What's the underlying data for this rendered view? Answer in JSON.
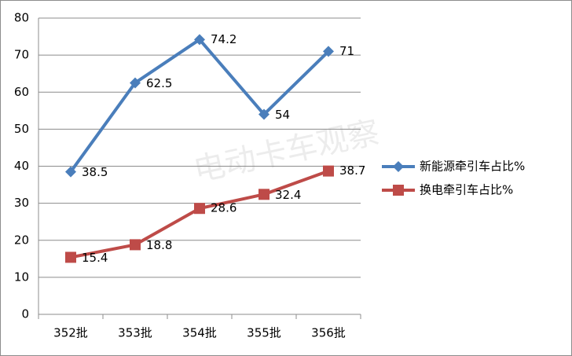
{
  "watermark": "电动卡车观察",
  "chart_data": {
    "type": "line",
    "categories": [
      "352批",
      "353批",
      "354批",
      "355批",
      "356批"
    ],
    "series": [
      {
        "name": "新能源牵引车占比%",
        "color": "#4a7ebb",
        "marker": "diamond",
        "values": [
          38.5,
          62.5,
          74.2,
          54,
          71
        ]
      },
      {
        "name": "换电牵引车占比%",
        "color": "#be4b48",
        "marker": "square",
        "values": [
          15.4,
          18.8,
          28.6,
          32.4,
          38.7
        ]
      }
    ],
    "ylim": [
      0,
      80
    ],
    "yticks": [
      0,
      10,
      20,
      30,
      40,
      50,
      60,
      70,
      80
    ],
    "grid": true,
    "legend": "right"
  }
}
